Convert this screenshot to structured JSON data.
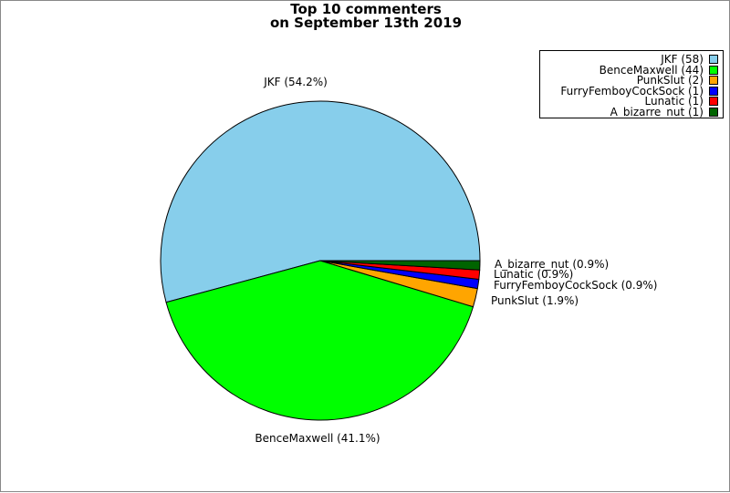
{
  "chart_data": {
    "type": "pie",
    "title": [
      "Top 10 commenters",
      "on September 13th 2019"
    ],
    "slices": [
      {
        "name": "JKF",
        "value": 58,
        "percent_label": "JKF (54.2%)",
        "legend_label": "JKF (58)",
        "color": "#87CEEB"
      },
      {
        "name": "BenceMaxwell",
        "value": 44,
        "percent_label": "BenceMaxwell (41.1%)",
        "legend_label": "BenceMaxwell (44)",
        "color": "#00FF00"
      },
      {
        "name": "PunkSlut",
        "value": 2,
        "percent_label": "PunkSlut (1.9%)",
        "legend_label": "PunkSlut (2)",
        "color": "#FFA500"
      },
      {
        "name": "FurryFemboyCockSock",
        "value": 1,
        "percent_label": "FurryFemboyCockSock (0.9%)",
        "legend_label": "FurryFemboyCockSock (1)",
        "color": "#0000FF"
      },
      {
        "name": "Lunatic",
        "value": 1,
        "percent_label": "Lunatic (0.9%)",
        "legend_label": "Lunatic (1)",
        "color": "#FF0000"
      },
      {
        "name": "A_bizarre_nut",
        "value": 1,
        "percent_label": "A_bizarre_nut (0.9%)",
        "legend_label": "A_bizarre_nut (1)",
        "color": "#006400"
      }
    ],
    "legend_position": "top-right"
  }
}
